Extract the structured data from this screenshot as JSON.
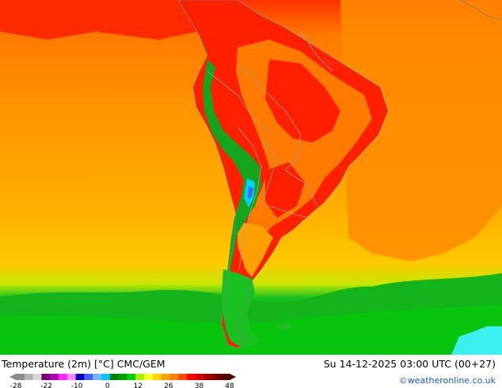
{
  "map": {
    "title_left": "Temperature (2m) [°C] CMC/GEM",
    "title_right": "Su 14-12-2025 03:00 UTC (00+27)",
    "credit": "©weatheronline.co.uk",
    "region": "South America",
    "legend": {
      "ticks": [
        "-28",
        "-22",
        "-10",
        "0",
        "12",
        "26",
        "38",
        "48"
      ],
      "colors": [
        "#8a8a8a",
        "#b4b4b4",
        "#d7d7d7",
        "#7a007a",
        "#b400b4",
        "#ff28ff",
        "#ff87ff",
        "#0000c8",
        "#3c64ff",
        "#78b4ff",
        "#00c8ff",
        "#008200",
        "#00a000",
        "#00d200",
        "#aaf000",
        "#ffff28",
        "#ffd200",
        "#ffa000",
        "#ff7d00",
        "#ff4b00",
        "#ff0000",
        "#d20000",
        "#a00000",
        "#780000",
        "#500000"
      ]
    },
    "colors": {
      "ocean_warm": "#ff9a00",
      "ocean_mid": "#ffb400",
      "land_hot": "#ff2000",
      "land_warm": "#ff7a00",
      "andes_cool": "#1fa81f",
      "south_cool": "#18c020",
      "antarctic_cold": "#3cf0f0",
      "borders": "#9a9a9a"
    }
  }
}
